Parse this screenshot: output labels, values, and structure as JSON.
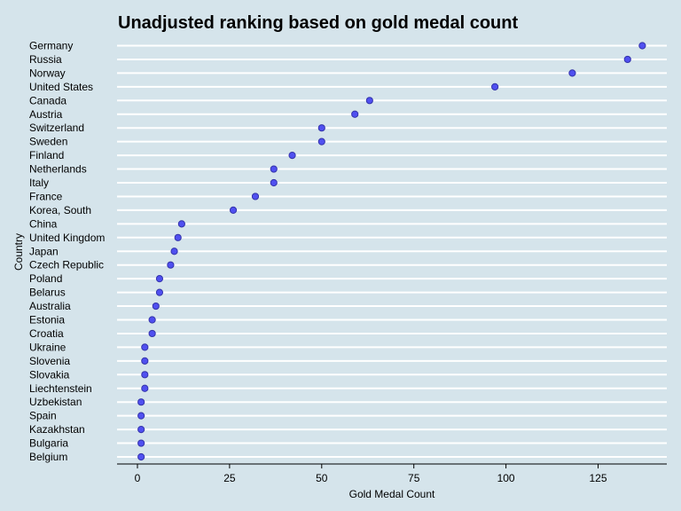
{
  "chart_data": {
    "type": "scatter",
    "title": "Unadjusted ranking based on gold medal count",
    "xlabel": "Gold Medal Count",
    "ylabel": "Country",
    "xlim": [
      -5,
      145
    ],
    "xticks": [
      0,
      25,
      50,
      75,
      100,
      125
    ],
    "point_color": "#5050f0",
    "grid": "horizontal",
    "categories": [
      "Germany",
      "Russia",
      "Norway",
      "United States",
      "Canada",
      "Austria",
      "Switzerland",
      "Sweden",
      "Finland",
      "Netherlands",
      "Italy",
      "France",
      "Korea, South",
      "China",
      "United Kingdom",
      "Japan",
      "Czech Republic",
      "Poland",
      "Belarus",
      "Australia",
      "Estonia",
      "Croatia",
      "Ukraine",
      "Slovenia",
      "Slovakia",
      "Liechtenstein",
      "Uzbekistan",
      "Spain",
      "Kazakhstan",
      "Bulgaria",
      "Belgium"
    ],
    "values": [
      137,
      133,
      118,
      97,
      63,
      59,
      50,
      50,
      42,
      37,
      37,
      32,
      26,
      12,
      11,
      10,
      9,
      6,
      6,
      5,
      4,
      4,
      2,
      2,
      2,
      2,
      1,
      1,
      1,
      1,
      1
    ]
  }
}
